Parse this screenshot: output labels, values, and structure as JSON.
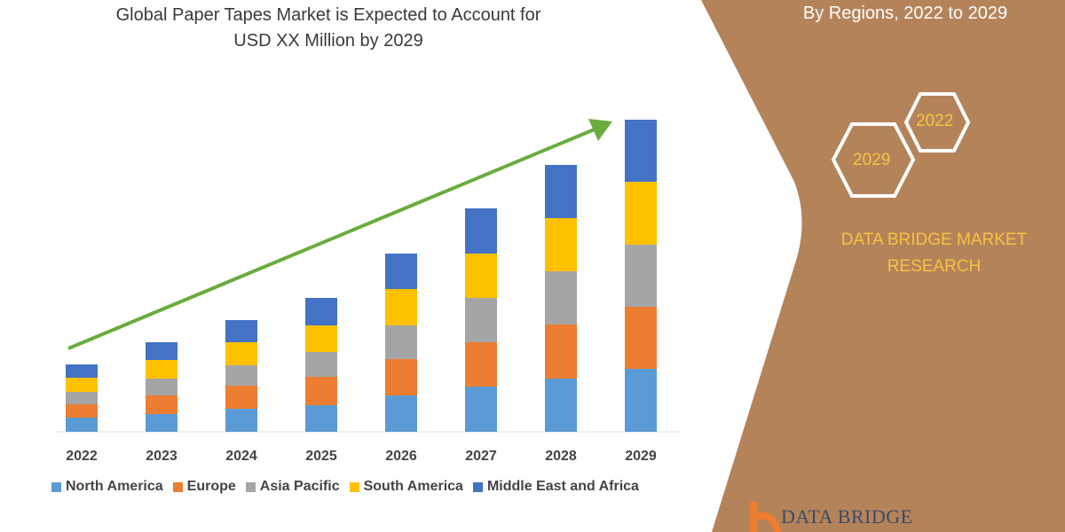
{
  "title_line1": "Global Paper Tapes Market is Expected to Account for",
  "title_line2": "USD XX Million by 2029",
  "subtitle": "By Regions, 2022 to 2029",
  "hexagons": [
    "2022",
    "2029"
  ],
  "brand_text": "DATA BRIDGE MARKET RESEARCH",
  "logo_text": "DATA BRIDGE",
  "colors": {
    "panel": "#b5835a",
    "arrow": "#6aac3f",
    "brand_text": "#f5c242"
  },
  "chart_data": {
    "type": "bar",
    "stacked": true,
    "categories": [
      "2022",
      "2023",
      "2024",
      "2025",
      "2026",
      "2027",
      "2028",
      "2029"
    ],
    "series": [
      {
        "name": "North America",
        "color": "#5b9bd5",
        "values": [
          16,
          20,
          26,
          30,
          41,
          51,
          60,
          71
        ]
      },
      {
        "name": "Europe",
        "color": "#ed7d31",
        "values": [
          15,
          21,
          26,
          32,
          41,
          50,
          61,
          70
        ]
      },
      {
        "name": "Asia Pacific",
        "color": "#a5a5a5",
        "values": [
          14,
          19,
          23,
          28,
          38,
          50,
          60,
          70
        ]
      },
      {
        "name": "South America",
        "color": "#ffc000",
        "values": [
          16,
          21,
          26,
          30,
          41,
          50,
          60,
          71
        ]
      },
      {
        "name": "Middle East and Africa",
        "color": "#4472c4",
        "values": [
          15,
          20,
          25,
          31,
          40,
          51,
          60,
          70
        ]
      }
    ],
    "trend_arrow": true,
    "grid": false,
    "legend_position": "bottom",
    "xlabel": "",
    "ylabel": ""
  }
}
